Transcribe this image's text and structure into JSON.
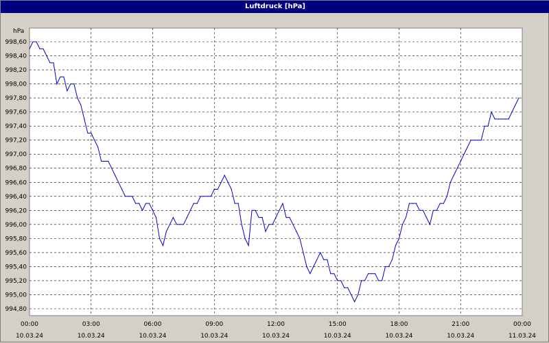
{
  "window": {
    "title": "Luftdruck [hPa]"
  },
  "chart_data": {
    "type": "line",
    "title": "Luftdruck [hPa]",
    "ylabel": "hPa",
    "xlabel": "",
    "ylim": [
      994.8,
      998.6
    ],
    "grid": true,
    "yticks": [
      "994,80",
      "995,00",
      "995,20",
      "995,40",
      "995,60",
      "995,80",
      "996,00",
      "996,20",
      "996,40",
      "996,60",
      "996,80",
      "997,00",
      "997,20",
      "997,40",
      "997,60",
      "997,80",
      "998,00",
      "998,20",
      "998,40",
      "998,60"
    ],
    "xticks": [
      {
        "time": "00:00",
        "date": "10.03.24"
      },
      {
        "time": "03:00",
        "date": "10.03.24"
      },
      {
        "time": "06:00",
        "date": "10.03.24"
      },
      {
        "time": "09:00",
        "date": "10.03.24"
      },
      {
        "time": "12:00",
        "date": "10.03.24"
      },
      {
        "time": "15:00",
        "date": "10.03.24"
      },
      {
        "time": "18:00",
        "date": "10.03.24"
      },
      {
        "time": "21:00",
        "date": "10.03.24"
      },
      {
        "time": "00:00",
        "date": "11.03.24"
      }
    ],
    "series": [
      {
        "color": "#0000cc",
        "points": [
          [
            "10.03.24 00:00",
            998.5
          ],
          [
            "10.03.24 00:10",
            998.6
          ],
          [
            "10.03.24 00:20",
            998.6
          ],
          [
            "10.03.24 00:30",
            998.5
          ],
          [
            "10.03.24 00:40",
            998.5
          ],
          [
            "10.03.24 00:50",
            998.4
          ],
          [
            "10.03.24 01:00",
            998.3
          ],
          [
            "10.03.24 01:10",
            998.3
          ],
          [
            "10.03.24 01:20",
            998.0
          ],
          [
            "10.03.24 01:30",
            998.1
          ],
          [
            "10.03.24 01:40",
            998.1
          ],
          [
            "10.03.24 01:50",
            997.9
          ],
          [
            "10.03.24 02:00",
            998.0
          ],
          [
            "10.03.24 02:10",
            998.0
          ],
          [
            "10.03.24 02:20",
            997.8
          ],
          [
            "10.03.24 02:30",
            997.7
          ],
          [
            "10.03.24 02:40",
            997.5
          ],
          [
            "10.03.24 02:50",
            997.3
          ],
          [
            "10.03.24 03:00",
            997.3
          ],
          [
            "10.03.24 03:10",
            997.2
          ],
          [
            "10.03.24 03:20",
            997.1
          ],
          [
            "10.03.24 03:30",
            996.9
          ],
          [
            "10.03.24 03:40",
            996.9
          ],
          [
            "10.03.24 03:50",
            996.9
          ],
          [
            "10.03.24 04:00",
            996.8
          ],
          [
            "10.03.24 04:10",
            996.7
          ],
          [
            "10.03.24 04:20",
            996.6
          ],
          [
            "10.03.24 04:30",
            996.5
          ],
          [
            "10.03.24 04:40",
            996.4
          ],
          [
            "10.03.24 04:50",
            996.4
          ],
          [
            "10.03.24 05:00",
            996.4
          ],
          [
            "10.03.24 05:10",
            996.3
          ],
          [
            "10.03.24 05:20",
            996.3
          ],
          [
            "10.03.24 05:30",
            996.2
          ],
          [
            "10.03.24 05:40",
            996.3
          ],
          [
            "10.03.24 05:50",
            996.3
          ],
          [
            "10.03.24 06:00",
            996.2
          ],
          [
            "10.03.24 06:10",
            996.1
          ],
          [
            "10.03.24 06:20",
            995.8
          ],
          [
            "10.03.24 06:30",
            995.7
          ],
          [
            "10.03.24 06:40",
            995.9
          ],
          [
            "10.03.24 06:50",
            996.0
          ],
          [
            "10.03.24 07:00",
            996.1
          ],
          [
            "10.03.24 07:10",
            996.0
          ],
          [
            "10.03.24 07:20",
            996.0
          ],
          [
            "10.03.24 07:30",
            996.0
          ],
          [
            "10.03.24 07:40",
            996.1
          ],
          [
            "10.03.24 07:50",
            996.2
          ],
          [
            "10.03.24 08:00",
            996.3
          ],
          [
            "10.03.24 08:10",
            996.3
          ],
          [
            "10.03.24 08:20",
            996.4
          ],
          [
            "10.03.24 08:30",
            996.4
          ],
          [
            "10.03.24 08:40",
            996.4
          ],
          [
            "10.03.24 08:50",
            996.4
          ],
          [
            "10.03.24 09:00",
            996.5
          ],
          [
            "10.03.24 09:10",
            996.5
          ],
          [
            "10.03.24 09:20",
            996.6
          ],
          [
            "10.03.24 09:30",
            996.7
          ],
          [
            "10.03.24 09:40",
            996.6
          ],
          [
            "10.03.24 09:50",
            996.5
          ],
          [
            "10.03.24 10:00",
            996.3
          ],
          [
            "10.03.24 10:10",
            996.3
          ],
          [
            "10.03.24 10:20",
            996.0
          ],
          [
            "10.03.24 10:30",
            995.8
          ],
          [
            "10.03.24 10:40",
            995.7
          ],
          [
            "10.03.24 10:50",
            996.2
          ],
          [
            "10.03.24 11:00",
            996.2
          ],
          [
            "10.03.24 11:10",
            996.1
          ],
          [
            "10.03.24 11:20",
            996.1
          ],
          [
            "10.03.24 11:30",
            995.9
          ],
          [
            "10.03.24 11:40",
            996.0
          ],
          [
            "10.03.24 11:50",
            996.0
          ],
          [
            "10.03.24 12:00",
            996.1
          ],
          [
            "10.03.24 12:10",
            996.2
          ],
          [
            "10.03.24 12:20",
            996.3
          ],
          [
            "10.03.24 12:30",
            996.1
          ],
          [
            "10.03.24 12:40",
            996.1
          ],
          [
            "10.03.24 12:50",
            996.0
          ],
          [
            "10.03.24 13:00",
            995.9
          ],
          [
            "10.03.24 13:10",
            995.8
          ],
          [
            "10.03.24 13:20",
            995.6
          ],
          [
            "10.03.24 13:30",
            995.4
          ],
          [
            "10.03.24 13:40",
            995.3
          ],
          [
            "10.03.24 13:50",
            995.4
          ],
          [
            "10.03.24 14:00",
            995.5
          ],
          [
            "10.03.24 14:10",
            995.6
          ],
          [
            "10.03.24 14:20",
            995.5
          ],
          [
            "10.03.24 14:30",
            995.5
          ],
          [
            "10.03.24 14:40",
            995.3
          ],
          [
            "10.03.24 14:50",
            995.3
          ],
          [
            "10.03.24 15:00",
            995.2
          ],
          [
            "10.03.24 15:10",
            995.2
          ],
          [
            "10.03.24 15:20",
            995.1
          ],
          [
            "10.03.24 15:30",
            995.1
          ],
          [
            "10.03.24 15:40",
            995.0
          ],
          [
            "10.03.24 15:50",
            994.9
          ],
          [
            "10.03.24 16:00",
            995.0
          ],
          [
            "10.03.24 16:10",
            995.2
          ],
          [
            "10.03.24 16:20",
            995.2
          ],
          [
            "10.03.24 16:30",
            995.3
          ],
          [
            "10.03.24 16:40",
            995.3
          ],
          [
            "10.03.24 16:50",
            995.3
          ],
          [
            "10.03.24 17:00",
            995.2
          ],
          [
            "10.03.24 17:10",
            995.2
          ],
          [
            "10.03.24 17:20",
            995.4
          ],
          [
            "10.03.24 17:30",
            995.4
          ],
          [
            "10.03.24 17:40",
            995.5
          ],
          [
            "10.03.24 17:50",
            995.7
          ],
          [
            "10.03.24 18:00",
            995.8
          ],
          [
            "10.03.24 18:10",
            996.0
          ],
          [
            "10.03.24 18:20",
            996.1
          ],
          [
            "10.03.24 18:30",
            996.3
          ],
          [
            "10.03.24 18:40",
            996.3
          ],
          [
            "10.03.24 18:50",
            996.3
          ],
          [
            "10.03.24 19:00",
            996.2
          ],
          [
            "10.03.24 19:10",
            996.2
          ],
          [
            "10.03.24 19:20",
            996.1
          ],
          [
            "10.03.24 19:30",
            996.0
          ],
          [
            "10.03.24 19:40",
            996.2
          ],
          [
            "10.03.24 19:50",
            996.2
          ],
          [
            "10.03.24 20:00",
            996.3
          ],
          [
            "10.03.24 20:10",
            996.3
          ],
          [
            "10.03.24 20:20",
            996.4
          ],
          [
            "10.03.24 20:30",
            996.6
          ],
          [
            "10.03.24 20:40",
            996.7
          ],
          [
            "10.03.24 20:50",
            996.8
          ],
          [
            "10.03.24 21:00",
            996.9
          ],
          [
            "10.03.24 21:10",
            997.0
          ],
          [
            "10.03.24 21:20",
            997.1
          ],
          [
            "10.03.24 21:30",
            997.2
          ],
          [
            "10.03.24 21:40",
            997.2
          ],
          [
            "10.03.24 21:50",
            997.2
          ],
          [
            "10.03.24 22:00",
            997.2
          ],
          [
            "10.03.24 22:10",
            997.4
          ],
          [
            "10.03.24 22:20",
            997.4
          ],
          [
            "10.03.24 22:30",
            997.6
          ],
          [
            "10.03.24 22:40",
            997.5
          ],
          [
            "10.03.24 22:50",
            997.5
          ],
          [
            "10.03.24 23:00",
            997.5
          ],
          [
            "10.03.24 23:10",
            997.5
          ],
          [
            "10.03.24 23:20",
            997.5
          ],
          [
            "10.03.24 23:30",
            997.6
          ],
          [
            "10.03.24 23:40",
            997.7
          ],
          [
            "10.03.24 23:50",
            997.8
          ]
        ]
      }
    ]
  }
}
